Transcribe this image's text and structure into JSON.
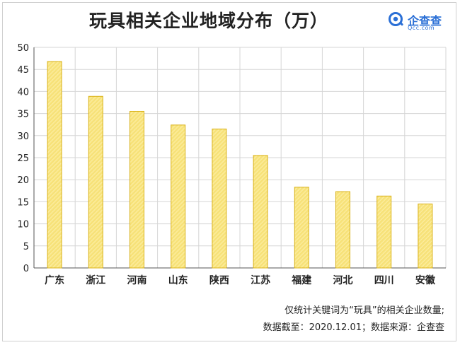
{
  "title": "玩具相关企业地域分布（万）",
  "logo": {
    "name": "企查查",
    "domain": "Qcc.com",
    "icon": "qcc-logo-icon"
  },
  "colors": {
    "bar_fill": "#f7e27a",
    "bar_stroke": "#d9b21a",
    "grid": "#d6d6d6",
    "axis": "#555555"
  },
  "notes": [
    "仅统计关键词为“玩具”的相关企业数量;",
    "数据截至：2020.12.01；数据来源：企查查"
  ],
  "chart_data": {
    "type": "bar",
    "categories": [
      "广东",
      "浙江",
      "河南",
      "山东",
      "陕西",
      "江苏",
      "福建",
      "河北",
      "四川",
      "安徽"
    ],
    "values": [
      46.8,
      38.9,
      35.5,
      32.4,
      31.5,
      25.5,
      18.3,
      17.3,
      16.3,
      14.5
    ],
    "title": "玩具相关企业地域分布（万）",
    "xlabel": "",
    "ylabel": "",
    "ylim": [
      0,
      50
    ],
    "yticks": [
      0,
      5,
      10,
      15,
      20,
      25,
      30,
      35,
      40,
      45,
      50
    ],
    "grid": true
  }
}
